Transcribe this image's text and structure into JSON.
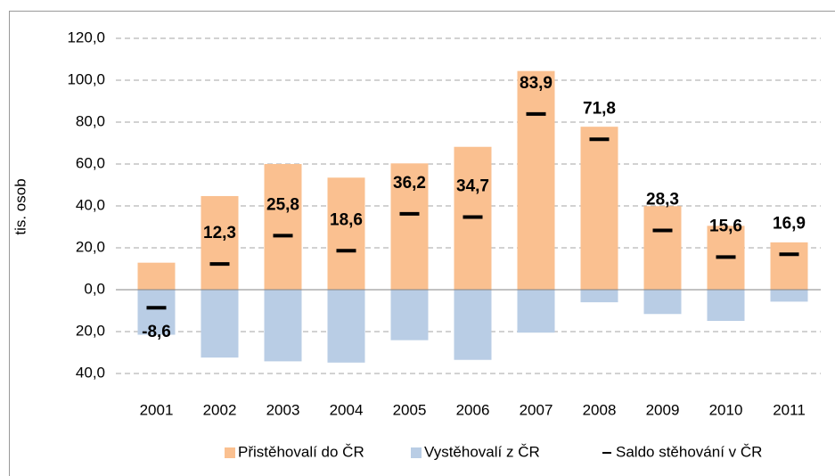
{
  "chart_data": {
    "type": "bar",
    "ylabel": "tis. osob",
    "categories": [
      "2001",
      "2002",
      "2003",
      "2004",
      "2005",
      "2006",
      "2007",
      "2008",
      "2009",
      "2010",
      "2011"
    ],
    "series": [
      {
        "name": "Přistěhovalí do ČR",
        "color": "#fac090",
        "values": [
          12.9,
          44.7,
          60.0,
          53.5,
          60.3,
          68.2,
          104.4,
          77.8,
          39.9,
          30.5,
          22.6
        ]
      },
      {
        "name": "Vystěhovalí z ČR",
        "color": "#b9cde5",
        "values": [
          -21.5,
          -32.4,
          -34.2,
          -34.8,
          -24.1,
          -33.5,
          -20.5,
          -6.0,
          -11.6,
          -14.9,
          -5.7
        ]
      },
      {
        "name": "Saldo stěhování v ČR",
        "color": "#000000",
        "marker": "dash",
        "values": [
          -8.6,
          12.3,
          25.8,
          18.6,
          36.2,
          34.7,
          83.9,
          71.8,
          28.3,
          15.6,
          16.9
        ],
        "value_labels": [
          "-8,6",
          "12,3",
          "25,8",
          "18,6",
          "36,2",
          "34,7",
          "83,9",
          "71,8",
          "28,3",
          "15,6",
          "16,9"
        ]
      }
    ],
    "ylim": [
      -40,
      120
    ],
    "yticks": [
      {
        "value": -40,
        "label": "40,0"
      },
      {
        "value": -20,
        "label": "20,0"
      },
      {
        "value": 0,
        "label": "0,0"
      },
      {
        "value": 20,
        "label": "20,0"
      },
      {
        "value": 40,
        "label": "40,0"
      },
      {
        "value": 60,
        "label": "60,0"
      },
      {
        "value": 80,
        "label": "80,0"
      },
      {
        "value": 100,
        "label": "100,0"
      },
      {
        "value": 120,
        "label": "120,0"
      }
    ],
    "grid": true,
    "legend": "bottom"
  }
}
